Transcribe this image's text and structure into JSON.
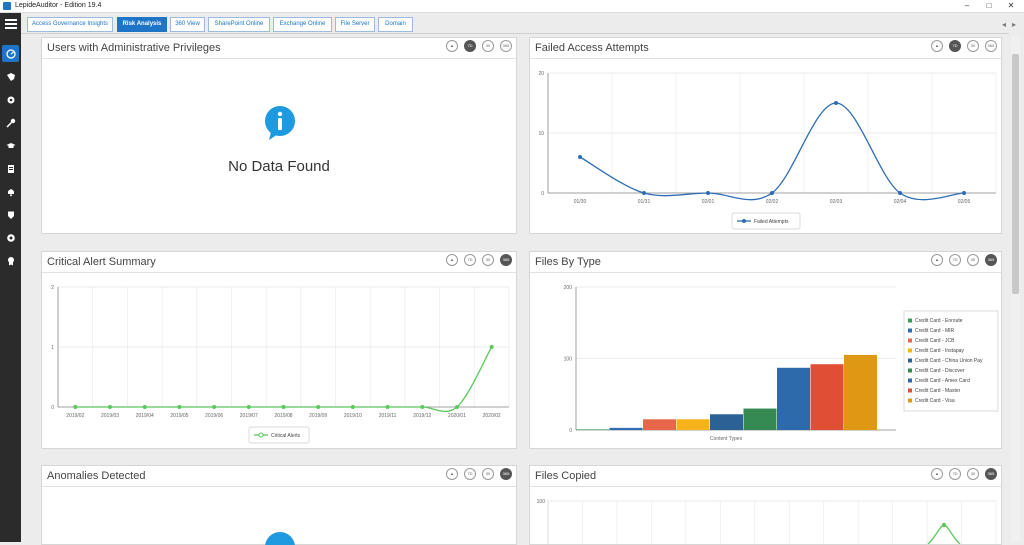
{
  "window": {
    "title": "LepideAuditor - Edition 19.4",
    "controls": [
      "–",
      "□",
      "✕"
    ]
  },
  "sidebar": {
    "items": [
      {
        "icon": "dashboard-icon",
        "active": true
      },
      {
        "icon": "shield-key-icon",
        "active": false
      },
      {
        "icon": "gear-user-icon",
        "active": false
      },
      {
        "icon": "key-icon",
        "active": false
      },
      {
        "icon": "graduation-icon",
        "active": false
      },
      {
        "icon": "report-icon",
        "active": false
      },
      {
        "icon": "bell-icon",
        "active": false
      },
      {
        "icon": "shield-icon",
        "active": false
      },
      {
        "icon": "settings-icon",
        "active": false
      },
      {
        "icon": "award-icon",
        "active": false
      }
    ]
  },
  "tabs": [
    {
      "label": "Access Governance Insights",
      "active": false
    },
    {
      "label": "Risk Analysis",
      "active": true
    },
    {
      "label": "360 View",
      "active": false
    },
    {
      "label": "SharePoint Online",
      "active": false
    },
    {
      "label": "Exchange Online",
      "active": false
    },
    {
      "label": "File Server",
      "active": false
    },
    {
      "label": "Domain",
      "active": false
    }
  ],
  "tab_nav": {
    "prev": "◂",
    "next": "▸"
  },
  "panel_icons": {
    "day7": "7D",
    "day30": "30",
    "day365": "365"
  },
  "panels": {
    "admin": {
      "title": "Users with Administrative Privileges",
      "message": "No Data Found",
      "selected": "7D"
    },
    "failed": {
      "title": "Failed Access Attempts",
      "selected": "7D"
    },
    "critical": {
      "title": "Critical Alert Summary",
      "selected": "365"
    },
    "files_type": {
      "title": "Files By Type",
      "selected": "365"
    },
    "anomalies": {
      "title": "Anomalies Detected",
      "selected": "365"
    },
    "files_copied": {
      "title": "Files Copied",
      "selected": "365"
    }
  },
  "chart_data": [
    {
      "type": "line",
      "title": "Failed Access Attempts",
      "x": [
        "01/30",
        "01/31",
        "02/01",
        "02/02",
        "02/03",
        "02/04",
        "02/05"
      ],
      "series": [
        {
          "name": "Failed Attempts",
          "values": [
            6,
            0,
            0,
            0,
            15,
            0,
            0
          ]
        }
      ],
      "yticks": [
        0,
        10,
        20
      ],
      "ylim": [
        0,
        20
      ],
      "color": "#2e6db4"
    },
    {
      "type": "line",
      "title": "Critical Alert Summary",
      "x": [
        "2019/02",
        "2019/03",
        "2019/04",
        "2019/05",
        "2019/06",
        "2019/07",
        "2019/08",
        "2019/09",
        "2019/10",
        "2019/11",
        "2019/12",
        "2020/01",
        "2020/02"
      ],
      "series": [
        {
          "name": "Critical Alerts",
          "values": [
            0,
            0,
            0,
            0,
            0,
            0,
            0,
            0,
            0,
            0,
            0,
            0,
            1
          ]
        }
      ],
      "yticks": [
        0,
        1,
        2
      ],
      "ylim": [
        0,
        2
      ],
      "color": "#5cc85c"
    },
    {
      "type": "bar",
      "title": "Files By Type",
      "xlabel": "Content Types",
      "yticks": [
        0,
        100,
        200
      ],
      "ylim": [
        0,
        200
      ],
      "series": [
        {
          "name": "Credit Card - Enroute",
          "value": 0,
          "color": "#3b9a5a"
        },
        {
          "name": "Credit Card - MIR",
          "value": 3,
          "color": "#2e6db4"
        },
        {
          "name": "Credit Card - JCB",
          "value": 15,
          "color": "#e8664a"
        },
        {
          "name": "Credit Card - Instapay",
          "value": 15,
          "color": "#f5b21b"
        },
        {
          "name": "Credit Card - China Union Pay",
          "value": 22,
          "color": "#2c6196"
        },
        {
          "name": "Credit Card - Discover",
          "value": 30,
          "color": "#348a52"
        },
        {
          "name": "Credit Card - Amex Card",
          "value": 87,
          "color": "#2c6aac"
        },
        {
          "name": "Credit Card - Master",
          "value": 92,
          "color": "#e04e35"
        },
        {
          "name": "Credit Card - Visa",
          "value": 105,
          "color": "#de9813"
        }
      ]
    },
    {
      "type": "line",
      "title": "Files Copied",
      "yticks": [
        100
      ],
      "ylim": [
        0,
        100
      ],
      "color": "#5cc85c"
    }
  ]
}
